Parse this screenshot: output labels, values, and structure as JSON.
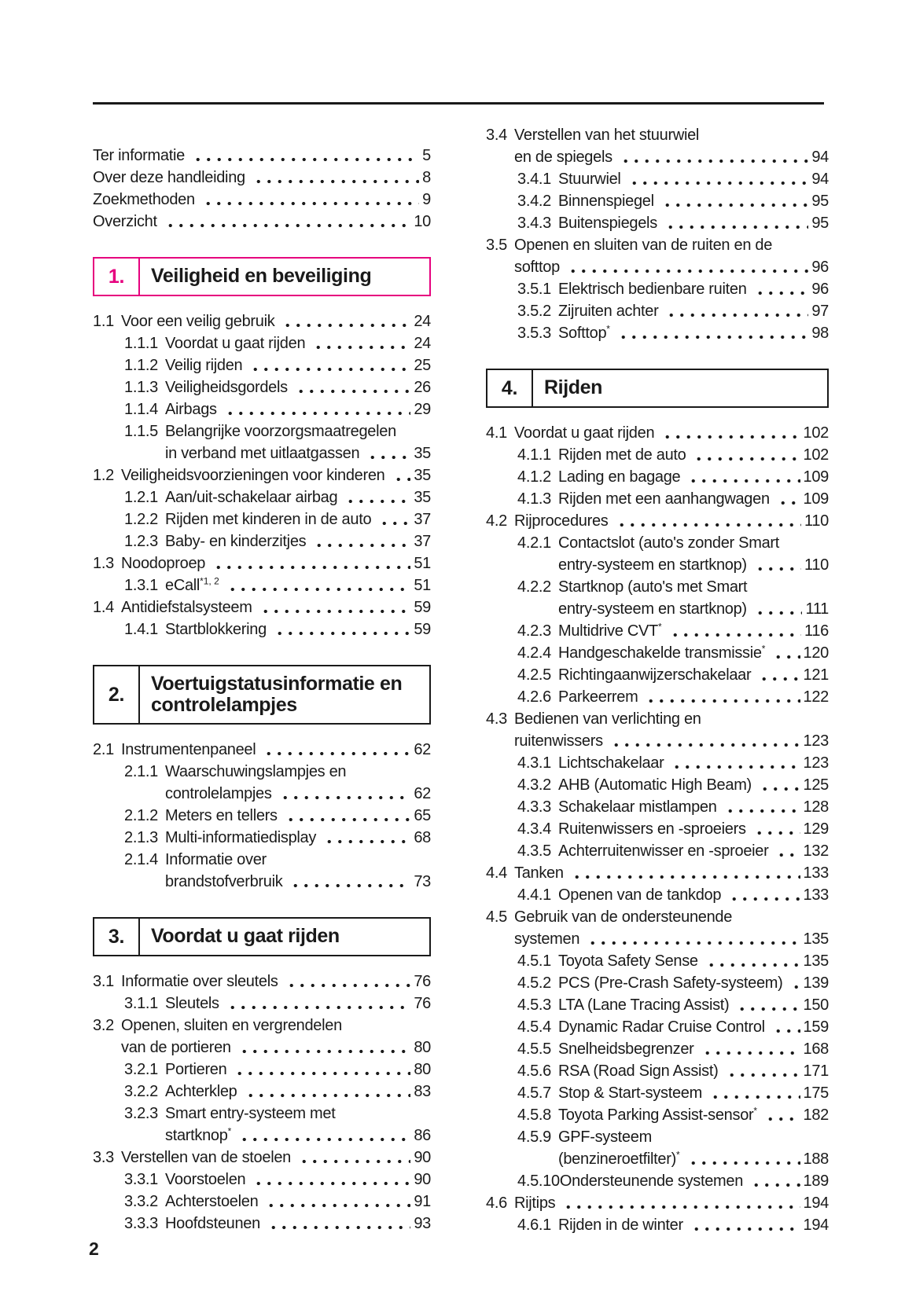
{
  "accent_color": "#e6007e",
  "text_color": "#1a1a1a",
  "footer": {
    "page_number": "2"
  },
  "toc": {
    "columns": [
      [
        {
          "type": "front",
          "items": [
            {
              "label": "Ter informatie",
              "page": "5"
            },
            {
              "label": "Over deze handleiding",
              "page": "8"
            },
            {
              "label": "Zoekmethoden",
              "page": "9"
            },
            {
              "label": "Overzicht",
              "page": "10"
            }
          ]
        },
        {
          "type": "box",
          "number": "1.",
          "title_lines": [
            "Veiligheid en beveiliging"
          ],
          "accent": true
        },
        {
          "type": "entries",
          "items": [
            {
              "num": "1.1",
              "level": 1,
              "lines": [
                "Voor een veilig gebruik"
              ],
              "page": "24"
            },
            {
              "num": "1.1.1",
              "level": 2,
              "lines": [
                "Voordat u gaat rijden"
              ],
              "page": "24"
            },
            {
              "num": "1.1.2",
              "level": 2,
              "lines": [
                "Veilig rijden"
              ],
              "page": "25"
            },
            {
              "num": "1.1.3",
              "level": 2,
              "lines": [
                "Veiligheidsgordels"
              ],
              "page": "26"
            },
            {
              "num": "1.1.4",
              "level": 2,
              "lines": [
                "Airbags"
              ],
              "page": "29"
            },
            {
              "num": "1.1.5",
              "level": 2,
              "lines": [
                "Belangrijke voorzorgsmaatregelen",
                "in verband met uitlaatgassen"
              ],
              "page": "35"
            },
            {
              "num": "1.2",
              "level": 1,
              "lines": [
                "Veiligheidsvoorzieningen voor kinderen"
              ],
              "page": "35"
            },
            {
              "num": "1.2.1",
              "level": 2,
              "lines": [
                "Aan/uit-schakelaar airbag"
              ],
              "page": "35"
            },
            {
              "num": "1.2.2",
              "level": 2,
              "lines": [
                "Rijden met kinderen in de auto"
              ],
              "page": "37"
            },
            {
              "num": "1.2.3",
              "level": 2,
              "lines": [
                "Baby- en kinderzitjes"
              ],
              "page": "37"
            },
            {
              "num": "1.3",
              "level": 1,
              "lines": [
                "Noodoproep"
              ],
              "page": "51"
            },
            {
              "num": "1.3.1",
              "level": 2,
              "lines": [
                "eCall"
              ],
              "sup": "*1, 2",
              "page": "51"
            },
            {
              "num": "1.4",
              "level": 1,
              "lines": [
                "Antidiefstalsysteem"
              ],
              "page": "59"
            },
            {
              "num": "1.4.1",
              "level": 2,
              "lines": [
                "Startblokkering"
              ],
              "page": "59"
            }
          ]
        },
        {
          "type": "box",
          "number": "2.",
          "title_lines": [
            "Voertuigstatusinformatie en",
            "controlelampjes"
          ],
          "accent": false
        },
        {
          "type": "entries",
          "items": [
            {
              "num": "2.1",
              "level": 1,
              "lines": [
                "Instrumentenpaneel"
              ],
              "page": "62"
            },
            {
              "num": "2.1.1",
              "level": 2,
              "lines": [
                "Waarschuwingslampjes en",
                "controlelampjes"
              ],
              "page": "62"
            },
            {
              "num": "2.1.2",
              "level": 2,
              "lines": [
                "Meters en tellers"
              ],
              "page": "65"
            },
            {
              "num": "2.1.3",
              "level": 2,
              "lines": [
                "Multi-informatiedisplay"
              ],
              "page": "68"
            },
            {
              "num": "2.1.4",
              "level": 2,
              "lines": [
                "Informatie over",
                "brandstofverbruik"
              ],
              "page": "73"
            }
          ]
        },
        {
          "type": "box",
          "number": "3.",
          "title_lines": [
            "Voordat u gaat rijden"
          ],
          "accent": false
        },
        {
          "type": "entries",
          "items": [
            {
              "num": "3.1",
              "level": 1,
              "lines": [
                "Informatie over sleutels"
              ],
              "page": "76"
            },
            {
              "num": "3.1.1",
              "level": 2,
              "lines": [
                "Sleutels"
              ],
              "page": "76"
            },
            {
              "num": "3.2",
              "level": 1,
              "lines": [
                "Openen, sluiten en vergrendelen",
                "van de portieren"
              ],
              "page": "80"
            },
            {
              "num": "3.2.1",
              "level": 2,
              "lines": [
                "Portieren"
              ],
              "page": "80"
            },
            {
              "num": "3.2.2",
              "level": 2,
              "lines": [
                "Achterklep"
              ],
              "page": "83"
            },
            {
              "num": "3.2.3",
              "level": 2,
              "lines": [
                "Smart entry-systeem met",
                "startknop"
              ],
              "sup": "*",
              "page": "86"
            },
            {
              "num": "3.3",
              "level": 1,
              "lines": [
                "Verstellen van de stoelen"
              ],
              "page": "90"
            },
            {
              "num": "3.3.1",
              "level": 2,
              "lines": [
                "Voorstoelen"
              ],
              "page": "90"
            },
            {
              "num": "3.3.2",
              "level": 2,
              "lines": [
                "Achterstoelen"
              ],
              "page": "91"
            },
            {
              "num": "3.3.3",
              "level": 2,
              "lines": [
                "Hoofdsteunen"
              ],
              "page": "93"
            }
          ]
        }
      ],
      [
        {
          "type": "entries",
          "items": [
            {
              "num": "3.4",
              "level": 1,
              "lines": [
                "Verstellen van het stuurwiel",
                "en de spiegels"
              ],
              "page": "94"
            },
            {
              "num": "3.4.1",
              "level": 2,
              "lines": [
                "Stuurwiel"
              ],
              "page": "94"
            },
            {
              "num": "3.4.2",
              "level": 2,
              "lines": [
                "Binnenspiegel"
              ],
              "page": "95"
            },
            {
              "num": "3.4.3",
              "level": 2,
              "lines": [
                "Buitenspiegels"
              ],
              "page": "95"
            },
            {
              "num": "3.5",
              "level": 1,
              "lines": [
                "Openen en sluiten van de ruiten en de",
                "softtop"
              ],
              "page": "96"
            },
            {
              "num": "3.5.1",
              "level": 2,
              "lines": [
                "Elektrisch bedienbare ruiten"
              ],
              "page": "96"
            },
            {
              "num": "3.5.2",
              "level": 2,
              "lines": [
                "Zijruiten achter"
              ],
              "page": "97"
            },
            {
              "num": "3.5.3",
              "level": 2,
              "lines": [
                "Softtop"
              ],
              "sup": "*",
              "page": "98"
            }
          ]
        },
        {
          "type": "box",
          "number": "4.",
          "title_lines": [
            "Rijden"
          ],
          "accent": false
        },
        {
          "type": "entries",
          "items": [
            {
              "num": "4.1",
              "level": 1,
              "lines": [
                "Voordat u gaat rijden"
              ],
              "page": "102"
            },
            {
              "num": "4.1.1",
              "level": 2,
              "lines": [
                "Rijden met de auto"
              ],
              "page": "102"
            },
            {
              "num": "4.1.2",
              "level": 2,
              "lines": [
                "Lading en bagage"
              ],
              "page": "109"
            },
            {
              "num": "4.1.3",
              "level": 2,
              "lines": [
                "Rijden met een aanhangwagen"
              ],
              "page": "109"
            },
            {
              "num": "4.2",
              "level": 1,
              "lines": [
                "Rijprocedures"
              ],
              "page": "110"
            },
            {
              "num": "4.2.1",
              "level": 2,
              "lines": [
                "Contactslot (auto's zonder Smart",
                "entry-systeem en startknop)"
              ],
              "page": "110"
            },
            {
              "num": "4.2.2",
              "level": 2,
              "lines": [
                "Startknop (auto's met Smart",
                "entry-systeem en startknop)"
              ],
              "page": "111"
            },
            {
              "num": "4.2.3",
              "level": 2,
              "lines": [
                "Multidrive CVT"
              ],
              "sup": "*",
              "page": "116"
            },
            {
              "num": "4.2.4",
              "level": 2,
              "lines": [
                "Handgeschakelde transmissie"
              ],
              "sup": "*",
              "page": "120"
            },
            {
              "num": "4.2.5",
              "level": 2,
              "lines": [
                "Richtingaanwijzerschakelaar"
              ],
              "page": "121"
            },
            {
              "num": "4.2.6",
              "level": 2,
              "lines": [
                "Parkeerrem"
              ],
              "page": "122"
            },
            {
              "num": "4.3",
              "level": 1,
              "lines": [
                "Bedienen van verlichting en",
                "ruitenwissers"
              ],
              "page": "123"
            },
            {
              "num": "4.3.1",
              "level": 2,
              "lines": [
                "Lichtschakelaar"
              ],
              "page": "123"
            },
            {
              "num": "4.3.2",
              "level": 2,
              "lines": [
                "AHB (Automatic High Beam)"
              ],
              "page": "125"
            },
            {
              "num": "4.3.3",
              "level": 2,
              "lines": [
                "Schakelaar mistlampen"
              ],
              "page": "128"
            },
            {
              "num": "4.3.4",
              "level": 2,
              "lines": [
                "Ruitenwissers en -sproeiers"
              ],
              "page": "129"
            },
            {
              "num": "4.3.5",
              "level": 2,
              "lines": [
                "Achterruitenwisser en -sproeier"
              ],
              "page": "132"
            },
            {
              "num": "4.4",
              "level": 1,
              "lines": [
                "Tanken"
              ],
              "page": "133"
            },
            {
              "num": "4.4.1",
              "level": 2,
              "lines": [
                "Openen van de tankdop"
              ],
              "page": "133"
            },
            {
              "num": "4.5",
              "level": 1,
              "lines": [
                "Gebruik van de ondersteunende",
                "systemen"
              ],
              "page": "135"
            },
            {
              "num": "4.5.1",
              "level": 2,
              "lines": [
                "Toyota Safety Sense"
              ],
              "page": "135"
            },
            {
              "num": "4.5.2",
              "level": 2,
              "lines": [
                "PCS (Pre-Crash Safety-systeem)"
              ],
              "page": "139"
            },
            {
              "num": "4.5.3",
              "level": 2,
              "lines": [
                "LTA (Lane Tracing Assist)"
              ],
              "page": "150"
            },
            {
              "num": "4.5.4",
              "level": 2,
              "lines": [
                "Dynamic Radar Cruise Control"
              ],
              "page": "159"
            },
            {
              "num": "4.5.5",
              "level": 2,
              "lines": [
                "Snelheidsbegrenzer"
              ],
              "page": "168"
            },
            {
              "num": "4.5.6",
              "level": 2,
              "lines": [
                "RSA (Road Sign Assist)"
              ],
              "page": "171"
            },
            {
              "num": "4.5.7",
              "level": 2,
              "lines": [
                "Stop & Start-systeem"
              ],
              "page": "175"
            },
            {
              "num": "4.5.8",
              "level": 2,
              "lines": [
                "Toyota Parking Assist-sensor"
              ],
              "sup": "*",
              "page": "182"
            },
            {
              "num": "4.5.9",
              "level": 2,
              "lines": [
                "GPF-systeem",
                "(benzineroetfilter)"
              ],
              "sup": "*",
              "page": "188"
            },
            {
              "num": "4.5.10",
              "level": 2,
              "lines": [
                "Ondersteunende systemen"
              ],
              "page": "189"
            },
            {
              "num": "4.6",
              "level": 1,
              "lines": [
                "Rijtips"
              ],
              "page": "194"
            },
            {
              "num": "4.6.1",
              "level": 2,
              "lines": [
                "Rijden in de winter"
              ],
              "page": "194"
            }
          ]
        }
      ]
    ]
  }
}
